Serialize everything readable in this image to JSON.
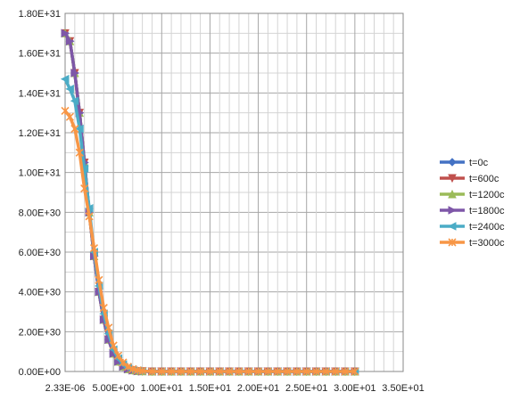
{
  "chart_data": {
    "type": "line",
    "title": "",
    "xlabel": "",
    "ylabel": "",
    "xlim": [
      0,
      35
    ],
    "ylim": [
      0,
      1.8e+31
    ],
    "x_tick_labels": [
      "2.33E-06",
      "5.00E+00",
      "1.00E+01",
      "1.50E+01",
      "2.00E+01",
      "2.50E+01",
      "3.00E+01",
      "3.50E+01"
    ],
    "y_tick_labels": [
      "0.00E+00",
      "2.00E+30",
      "4.00E+30",
      "6.00E+30",
      "8.00E+30",
      "1.00E+31",
      "1.20E+31",
      "1.40E+31",
      "1.60E+31",
      "1.80E+31"
    ],
    "grid": true,
    "legend_position": "right",
    "x": [
      0.0,
      0.5,
      1.0,
      1.5,
      2.0,
      2.5,
      3.0,
      3.5,
      4.0,
      4.5,
      5.0,
      5.5,
      6.0,
      6.5,
      7.0,
      7.5,
      8.0,
      9.0,
      10.0,
      11.0,
      12.0,
      13.0,
      14.0,
      15.0,
      16.0,
      17.0,
      18.0,
      19.0,
      20.0,
      21.0,
      22.0,
      23.0,
      24.0,
      25.0,
      26.0,
      27.0,
      28.0,
      29.0,
      30.0
    ],
    "series": [
      {
        "name": "t=0c",
        "color": "#4472C4",
        "marker": "diamond",
        "values": [
          1.7e+31,
          1.66e+31,
          1.5e+31,
          1.3e+31,
          1.05e+31,
          8e+30,
          5.8e+30,
          4e+30,
          2.6e+30,
          1.6e+30,
          9e+29,
          5e+29,
          2.5e+29,
          1.2e+29,
          6e+28,
          2e+28,
          1e+28,
          0,
          0,
          0,
          0,
          0,
          0,
          0,
          0,
          0,
          0,
          0,
          0,
          0,
          0,
          0,
          0,
          0,
          0,
          0,
          0,
          0,
          0
        ]
      },
      {
        "name": "t=600c",
        "color": "#C0504D",
        "marker": "triangle-down",
        "values": [
          1.7e+31,
          1.66e+31,
          1.5e+31,
          1.3e+31,
          1.05e+31,
          8e+30,
          5.8e+30,
          4e+30,
          2.6e+30,
          1.6e+30,
          9e+29,
          5e+29,
          2.5e+29,
          1.2e+29,
          6e+28,
          2e+28,
          1e+28,
          0,
          0,
          0,
          0,
          0,
          0,
          0,
          0,
          0,
          0,
          0,
          0,
          0,
          0,
          0,
          0,
          0,
          0,
          0,
          0,
          0,
          0
        ]
      },
      {
        "name": "t=1200c",
        "color": "#9BBB59",
        "marker": "triangle",
        "values": [
          1.7e+31,
          1.66e+31,
          1.5e+31,
          1.3e+31,
          1.05e+31,
          8e+30,
          5.8e+30,
          4e+30,
          2.6e+30,
          1.6e+30,
          9e+29,
          5e+29,
          2.5e+29,
          1.2e+29,
          6e+28,
          2e+28,
          1e+28,
          0,
          0,
          0,
          0,
          0,
          0,
          0,
          0,
          0,
          0,
          0,
          0,
          0,
          0,
          0,
          0,
          0,
          0,
          0,
          0,
          0,
          0
        ]
      },
      {
        "name": "t=1800c",
        "color": "#7E57A8",
        "marker": "triangle-right",
        "values": [
          1.7e+31,
          1.66e+31,
          1.5e+31,
          1.3e+31,
          1.05e+31,
          8e+30,
          5.8e+30,
          4e+30,
          2.6e+30,
          1.6e+30,
          9e+29,
          5e+29,
          2.5e+29,
          1.2e+29,
          6e+28,
          2e+28,
          1e+28,
          0,
          0,
          0,
          0,
          0,
          0,
          0,
          0,
          0,
          0,
          0,
          0,
          0,
          0,
          0,
          0,
          0,
          0,
          0,
          0,
          0,
          0
        ]
      },
      {
        "name": "t=2400c",
        "color": "#4BACC6",
        "marker": "triangle-left",
        "values": [
          1.47e+31,
          1.42e+31,
          1.36e+31,
          1.22e+31,
          1.02e+31,
          8.2e+30,
          6e+30,
          4.3e+30,
          2.9e+30,
          1.9e+30,
          1.1e+30,
          6.5e+29,
          3.5e+29,
          1.8e+29,
          9e+28,
          4e+28,
          2e+28,
          0,
          0,
          0,
          0,
          0,
          0,
          0,
          0,
          0,
          0,
          0,
          0,
          0,
          0,
          0,
          0,
          0,
          0,
          0,
          0,
          0,
          0
        ]
      },
      {
        "name": "t=3000c",
        "color": "#F79646",
        "marker": "star",
        "values": [
          1.31e+31,
          1.28e+31,
          1.22e+31,
          1.1e+31,
          9.2e+30,
          7.8e+30,
          6.2e+30,
          4.6e+30,
          3.2e+30,
          2.2e+30,
          1.3e+30,
          8e+29,
          4.5e+29,
          2.4e+29,
          1.2e+29,
          6e+28,
          3e+28,
          0,
          0,
          0,
          0,
          0,
          0,
          0,
          0,
          0,
          0,
          0,
          0,
          0,
          0,
          0,
          0,
          0,
          0,
          0,
          0,
          0,
          0
        ]
      }
    ]
  }
}
